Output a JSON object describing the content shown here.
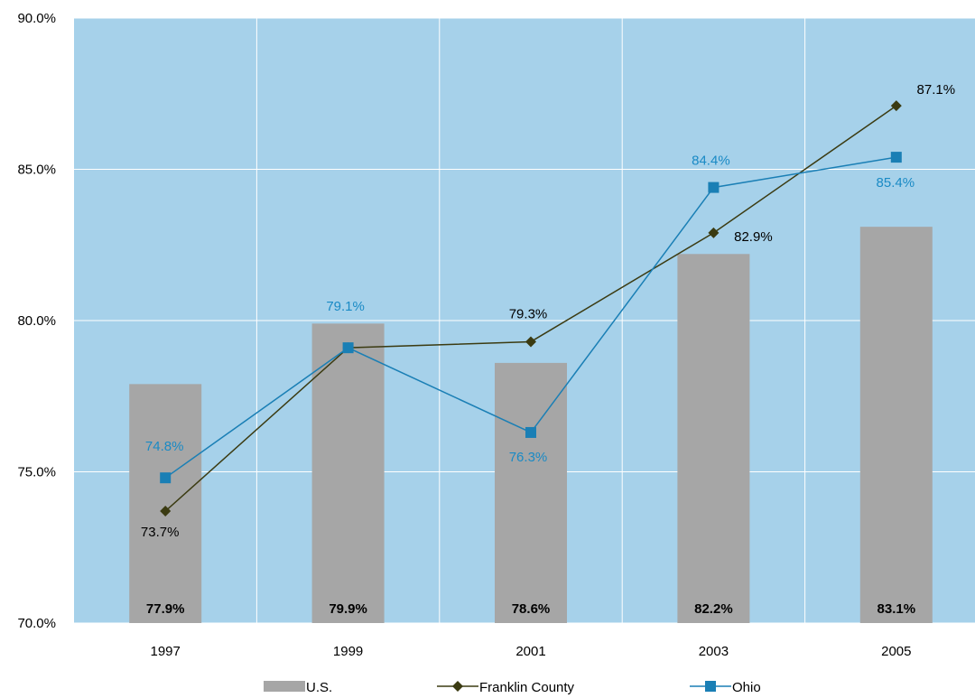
{
  "chart_data": {
    "type": "bar",
    "categories": [
      "1997",
      "1999",
      "2001",
      "2003",
      "2005"
    ],
    "ylim": [
      70.0,
      90.0
    ],
    "yticks": [
      70.0,
      75.0,
      80.0,
      85.0,
      90.0
    ],
    "ytick_labels": [
      "70.0%",
      "75.0%",
      "80.0%",
      "85.0%",
      "90.0%"
    ],
    "grid": true,
    "legend_position": "bottom",
    "plot_background": "#a6d1ea",
    "series": [
      {
        "name": "U.S.",
        "kind": "bar",
        "color": "#a6a6a6",
        "values": [
          77.9,
          79.9,
          78.6,
          82.2,
          83.1
        ],
        "labels": [
          "77.9%",
          "79.9%",
          "78.6%",
          "82.2%",
          "83.1%"
        ]
      },
      {
        "name": "Franklin County",
        "kind": "line",
        "marker": "diamond",
        "color": "#3b3b12",
        "label_color": "#000000",
        "values": [
          73.7,
          79.1,
          79.3,
          82.9,
          87.1
        ],
        "labels": [
          "73.7%",
          "",
          "79.3%",
          "82.9%",
          "87.1%"
        ]
      },
      {
        "name": "Ohio",
        "kind": "line",
        "marker": "square",
        "color": "#1a7fb5",
        "label_color": "#1a8ac5",
        "values": [
          74.8,
          79.1,
          76.3,
          84.4,
          85.4
        ],
        "labels": [
          "74.8%",
          "79.1%",
          "76.3%",
          "84.4%",
          "85.4%"
        ]
      }
    ]
  }
}
